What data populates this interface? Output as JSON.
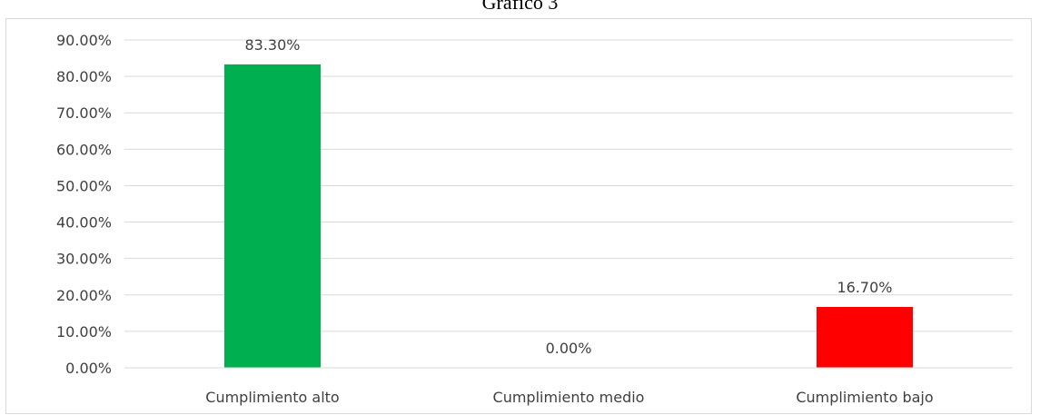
{
  "chart_data": {
    "type": "bar",
    "title": "Gráfico 3",
    "categories": [
      "Cumplimiento alto",
      "Cumplimiento medio",
      "Cumplimiento bajo"
    ],
    "values": [
      83.3,
      0.0,
      16.7
    ],
    "data_labels": [
      "83.30%",
      "0.00%",
      "16.70%"
    ],
    "bar_colors": [
      "#00b050",
      "#ffc000",
      "#ff0000"
    ],
    "y_ticks": [
      "0.00%",
      "10.00%",
      "20.00%",
      "30.00%",
      "40.00%",
      "50.00%",
      "60.00%",
      "70.00%",
      "80.00%",
      "90.00%"
    ],
    "ylim": [
      0,
      90
    ],
    "grid": true,
    "xlabel": "",
    "ylabel": ""
  }
}
